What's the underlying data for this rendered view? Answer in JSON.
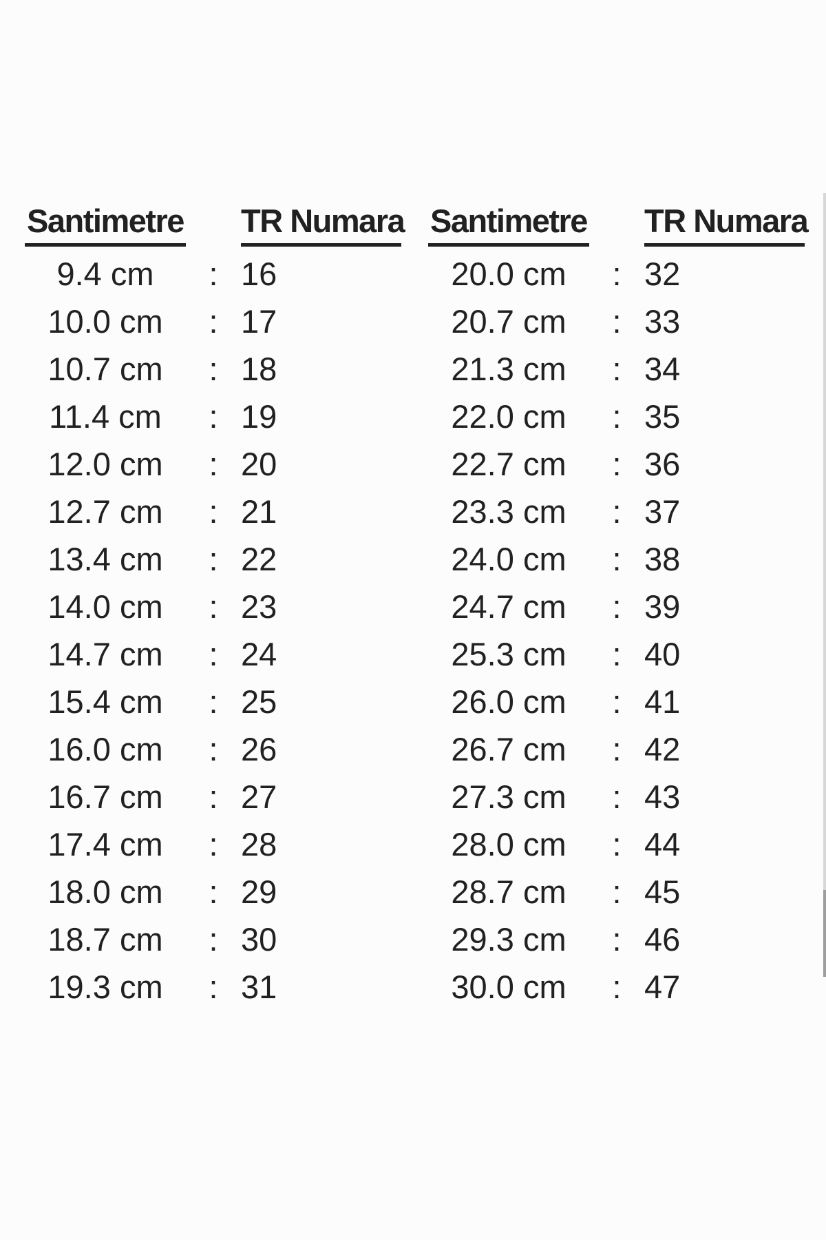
{
  "page": {
    "background": "#fcfcfc",
    "text_color": "#212121",
    "scrollbar": {
      "track_color": "#d7d7d7",
      "thumb_color": "#9e9e9e"
    }
  },
  "size_chart": {
    "column_pairs": [
      {
        "cm_header": "Santimetre",
        "size_header": "TR Numara",
        "separator": ":",
        "rows": [
          {
            "cm": "9.4 cm",
            "size": "16"
          },
          {
            "cm": "10.0 cm",
            "size": "17"
          },
          {
            "cm": "10.7 cm",
            "size": "18"
          },
          {
            "cm": "11.4 cm",
            "size": "19"
          },
          {
            "cm": "12.0 cm",
            "size": "20"
          },
          {
            "cm": "12.7 cm",
            "size": "21"
          },
          {
            "cm": "13.4 cm",
            "size": "22"
          },
          {
            "cm": "14.0 cm",
            "size": "23"
          },
          {
            "cm": "14.7 cm",
            "size": "24"
          },
          {
            "cm": "15.4 cm",
            "size": "25"
          },
          {
            "cm": "16.0 cm",
            "size": "26"
          },
          {
            "cm": "16.7 cm",
            "size": "27"
          },
          {
            "cm": "17.4 cm",
            "size": "28"
          },
          {
            "cm": "18.0 cm",
            "size": "29"
          },
          {
            "cm": "18.7 cm",
            "size": "30"
          },
          {
            "cm": "19.3 cm",
            "size": "31"
          }
        ]
      },
      {
        "cm_header": "Santimetre",
        "size_header": "TR Numara",
        "separator": ":",
        "rows": [
          {
            "cm": "20.0 cm",
            "size": "32"
          },
          {
            "cm": "20.7 cm",
            "size": "33"
          },
          {
            "cm": "21.3 cm",
            "size": "34"
          },
          {
            "cm": "22.0 cm",
            "size": "35"
          },
          {
            "cm": "22.7 cm",
            "size": "36"
          },
          {
            "cm": "23.3 cm",
            "size": "37"
          },
          {
            "cm": "24.0 cm",
            "size": "38"
          },
          {
            "cm": "24.7 cm",
            "size": "39"
          },
          {
            "cm": "25.3 cm",
            "size": "40"
          },
          {
            "cm": "26.0 cm",
            "size": "41"
          },
          {
            "cm": "26.7 cm",
            "size": "42"
          },
          {
            "cm": "27.3 cm",
            "size": "43"
          },
          {
            "cm": "28.0 cm",
            "size": "44"
          },
          {
            "cm": "28.7 cm",
            "size": "45"
          },
          {
            "cm": "29.3 cm",
            "size": "46"
          },
          {
            "cm": "30.0 cm",
            "size": "47"
          }
        ]
      }
    ]
  },
  "chart_data": {
    "type": "table",
    "title": "Santimetre to TR Numara shoe size conversion",
    "columns": [
      "Santimetre",
      "TR Numara"
    ],
    "rows": [
      [
        "9.4 cm",
        16
      ],
      [
        "10.0 cm",
        17
      ],
      [
        "10.7 cm",
        18
      ],
      [
        "11.4 cm",
        19
      ],
      [
        "12.0 cm",
        20
      ],
      [
        "12.7 cm",
        21
      ],
      [
        "13.4 cm",
        22
      ],
      [
        "14.0 cm",
        23
      ],
      [
        "14.7 cm",
        24
      ],
      [
        "15.4 cm",
        25
      ],
      [
        "16.0 cm",
        26
      ],
      [
        "16.7 cm",
        27
      ],
      [
        "17.4 cm",
        28
      ],
      [
        "18.0 cm",
        29
      ],
      [
        "18.7 cm",
        30
      ],
      [
        "19.3 cm",
        31
      ],
      [
        "20.0 cm",
        32
      ],
      [
        "20.7 cm",
        33
      ],
      [
        "21.3 cm",
        34
      ],
      [
        "22.0 cm",
        35
      ],
      [
        "22.7 cm",
        36
      ],
      [
        "23.3 cm",
        37
      ],
      [
        "24.0 cm",
        38
      ],
      [
        "24.7 cm",
        39
      ],
      [
        "25.3 cm",
        40
      ],
      [
        "26.0 cm",
        41
      ],
      [
        "26.7 cm",
        42
      ],
      [
        "27.3 cm",
        43
      ],
      [
        "28.0 cm",
        44
      ],
      [
        "28.7 cm",
        45
      ],
      [
        "29.3 cm",
        46
      ],
      [
        "30.0 cm",
        47
      ]
    ],
    "layout": "two side-by-side column pairs, 16 rows each, headers bold and underlined"
  }
}
